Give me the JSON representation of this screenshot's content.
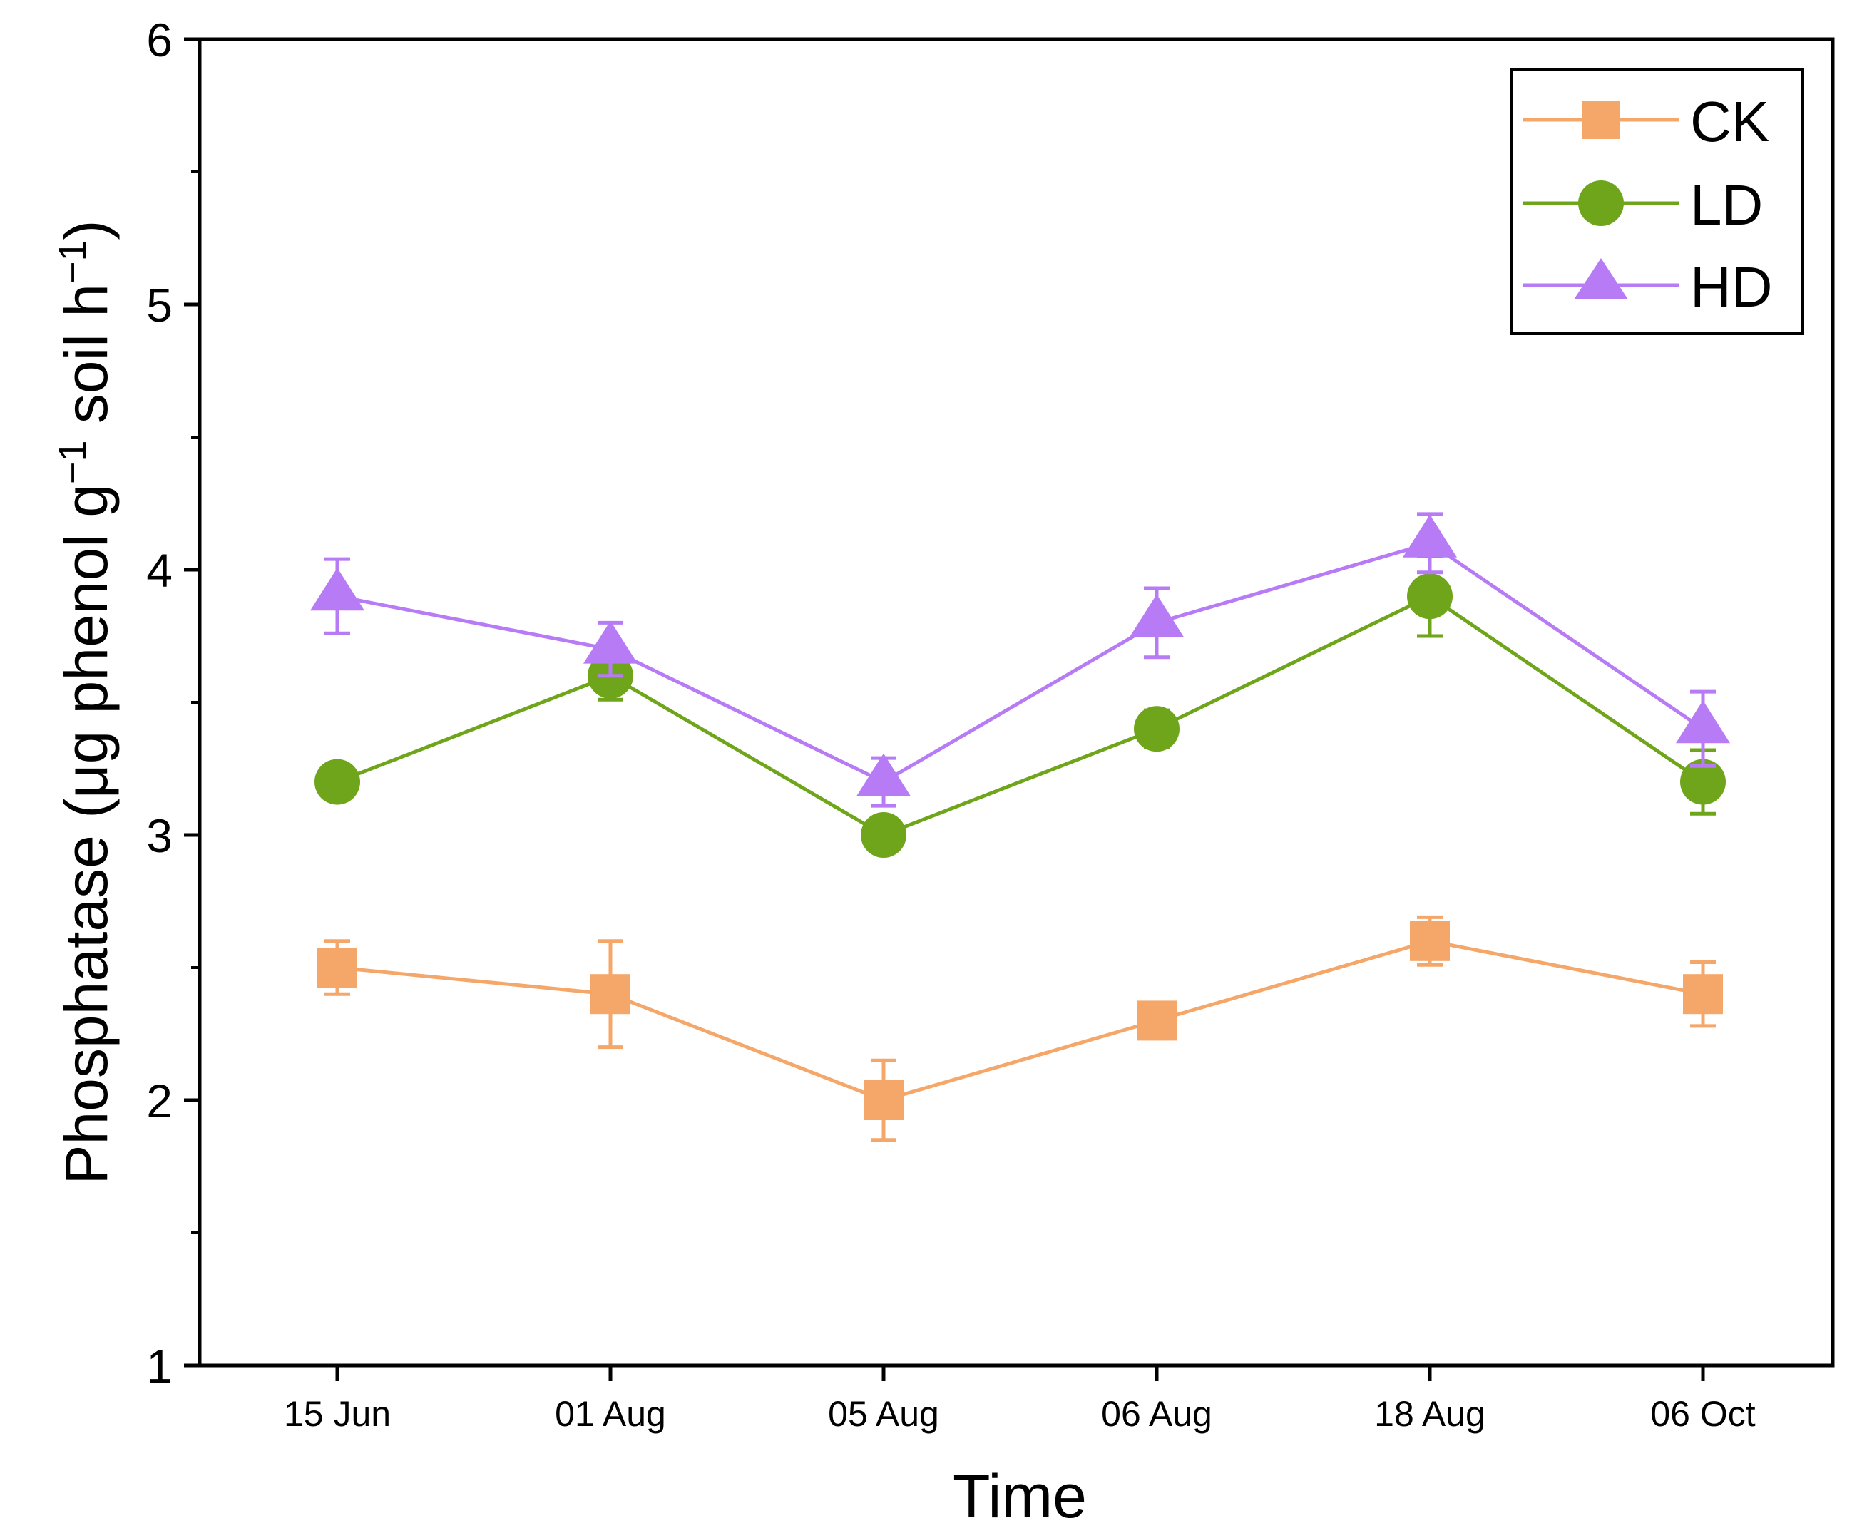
{
  "chart_data": {
    "type": "line",
    "title": "",
    "xlabel": "Time",
    "ylabel": {
      "main": "Phosphatase (μg phenol g",
      "sup1": "−1",
      "mid": " soil h",
      "sup2": "−1",
      "end": ")"
    },
    "categories": [
      "15 Jun",
      "01 Aug",
      "05 Aug",
      "06 Aug",
      "18 Aug",
      "06 Oct"
    ],
    "ylim": [
      1,
      6
    ],
    "yticks": [
      1,
      2,
      3,
      4,
      5,
      6
    ],
    "ytick_labels": [
      "1",
      "2",
      "3",
      "4",
      "5",
      "6"
    ],
    "grid": false,
    "legend_position": "top-right",
    "series": [
      {
        "name": "CK",
        "marker": "square",
        "color": "#F5A76A",
        "values": [
          2.5,
          2.4,
          2.0,
          2.3,
          2.6,
          2.4
        ],
        "errors": [
          0.1,
          0.2,
          0.15,
          0.04,
          0.09,
          0.12
        ]
      },
      {
        "name": "LD",
        "marker": "circle",
        "color": "#6FA51B",
        "values": [
          3.2,
          3.6,
          3.0,
          3.4,
          3.9,
          3.2
        ],
        "errors": [
          0.02,
          0.09,
          0.02,
          0.07,
          0.15,
          0.12
        ]
      },
      {
        "name": "HD",
        "marker": "triangle",
        "color": "#B77BF5",
        "values": [
          3.9,
          3.7,
          3.2,
          3.8,
          4.1,
          3.4
        ],
        "errors": [
          0.14,
          0.1,
          0.09,
          0.13,
          0.11,
          0.14
        ]
      }
    ]
  }
}
